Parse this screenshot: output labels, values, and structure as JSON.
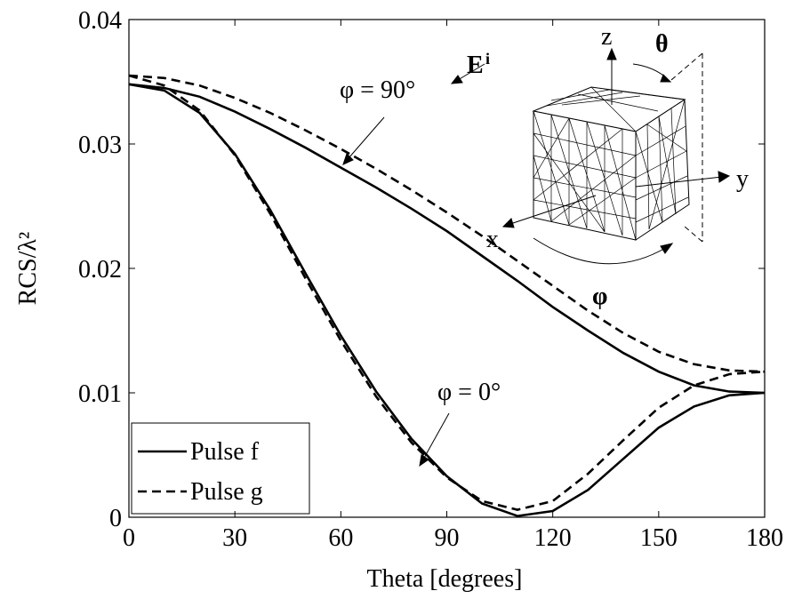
{
  "chart_data": {
    "type": "line",
    "x_label": "Theta [degrees]",
    "y_label": "RCS/λ²",
    "x": [
      0,
      10,
      20,
      30,
      40,
      50,
      60,
      70,
      80,
      90,
      100,
      110,
      120,
      130,
      140,
      150,
      160,
      170,
      180
    ],
    "series": [
      {
        "name": "Pulse f",
        "color": "#000000",
        "dash": false,
        "values": [
          0.0348,
          0.0345,
          0.0338,
          0.0326,
          0.0312,
          0.0297,
          0.0281,
          0.0265,
          0.0248,
          0.023,
          0.021,
          0.019,
          0.0169,
          0.015,
          0.0132,
          0.0117,
          0.0106,
          0.0101,
          0.01
        ]
      },
      {
        "name": "Pulse g",
        "color": "#000000",
        "dash": true,
        "values": [
          0.0355,
          0.0353,
          0.0347,
          0.0337,
          0.0325,
          0.0311,
          0.0296,
          0.028,
          0.0263,
          0.0245,
          0.0226,
          0.0206,
          0.0186,
          0.0166,
          0.0148,
          0.0133,
          0.0123,
          0.0118,
          0.0117
        ]
      },
      {
        "color": "#000000",
        "dash": false,
        "values": [
          0.0348,
          0.0343,
          0.0325,
          0.0292,
          0.0247,
          0.0196,
          0.0146,
          0.0101,
          0.0063,
          0.0033,
          0.0011,
          0.0001,
          0.0005,
          0.0022,
          0.0047,
          0.0072,
          0.0089,
          0.0098,
          0.01
        ]
      },
      {
        "color": "#000000",
        "dash": true,
        "values": [
          0.0355,
          0.0347,
          0.0327,
          0.0291,
          0.0244,
          0.0192,
          0.0142,
          0.0097,
          0.006,
          0.0032,
          0.0013,
          0.0006,
          0.0013,
          0.0035,
          0.0062,
          0.0088,
          0.0106,
          0.0115,
          0.0117
        ]
      }
    ],
    "xlim": [
      0,
      180
    ],
    "xticks": [
      0,
      30,
      60,
      90,
      120,
      150,
      180
    ],
    "ylim": [
      0,
      0.04
    ],
    "yticks": [
      0,
      0.01,
      0.02,
      0.03,
      0.04
    ],
    "legend": "lower left",
    "annotations": [
      "φ = 90°",
      "φ = 0°"
    ],
    "inset": {
      "e": "E",
      "e_sup": "i",
      "z": "z",
      "theta": "θ",
      "y": "y",
      "x": "x",
      "phi": "φ"
    }
  }
}
